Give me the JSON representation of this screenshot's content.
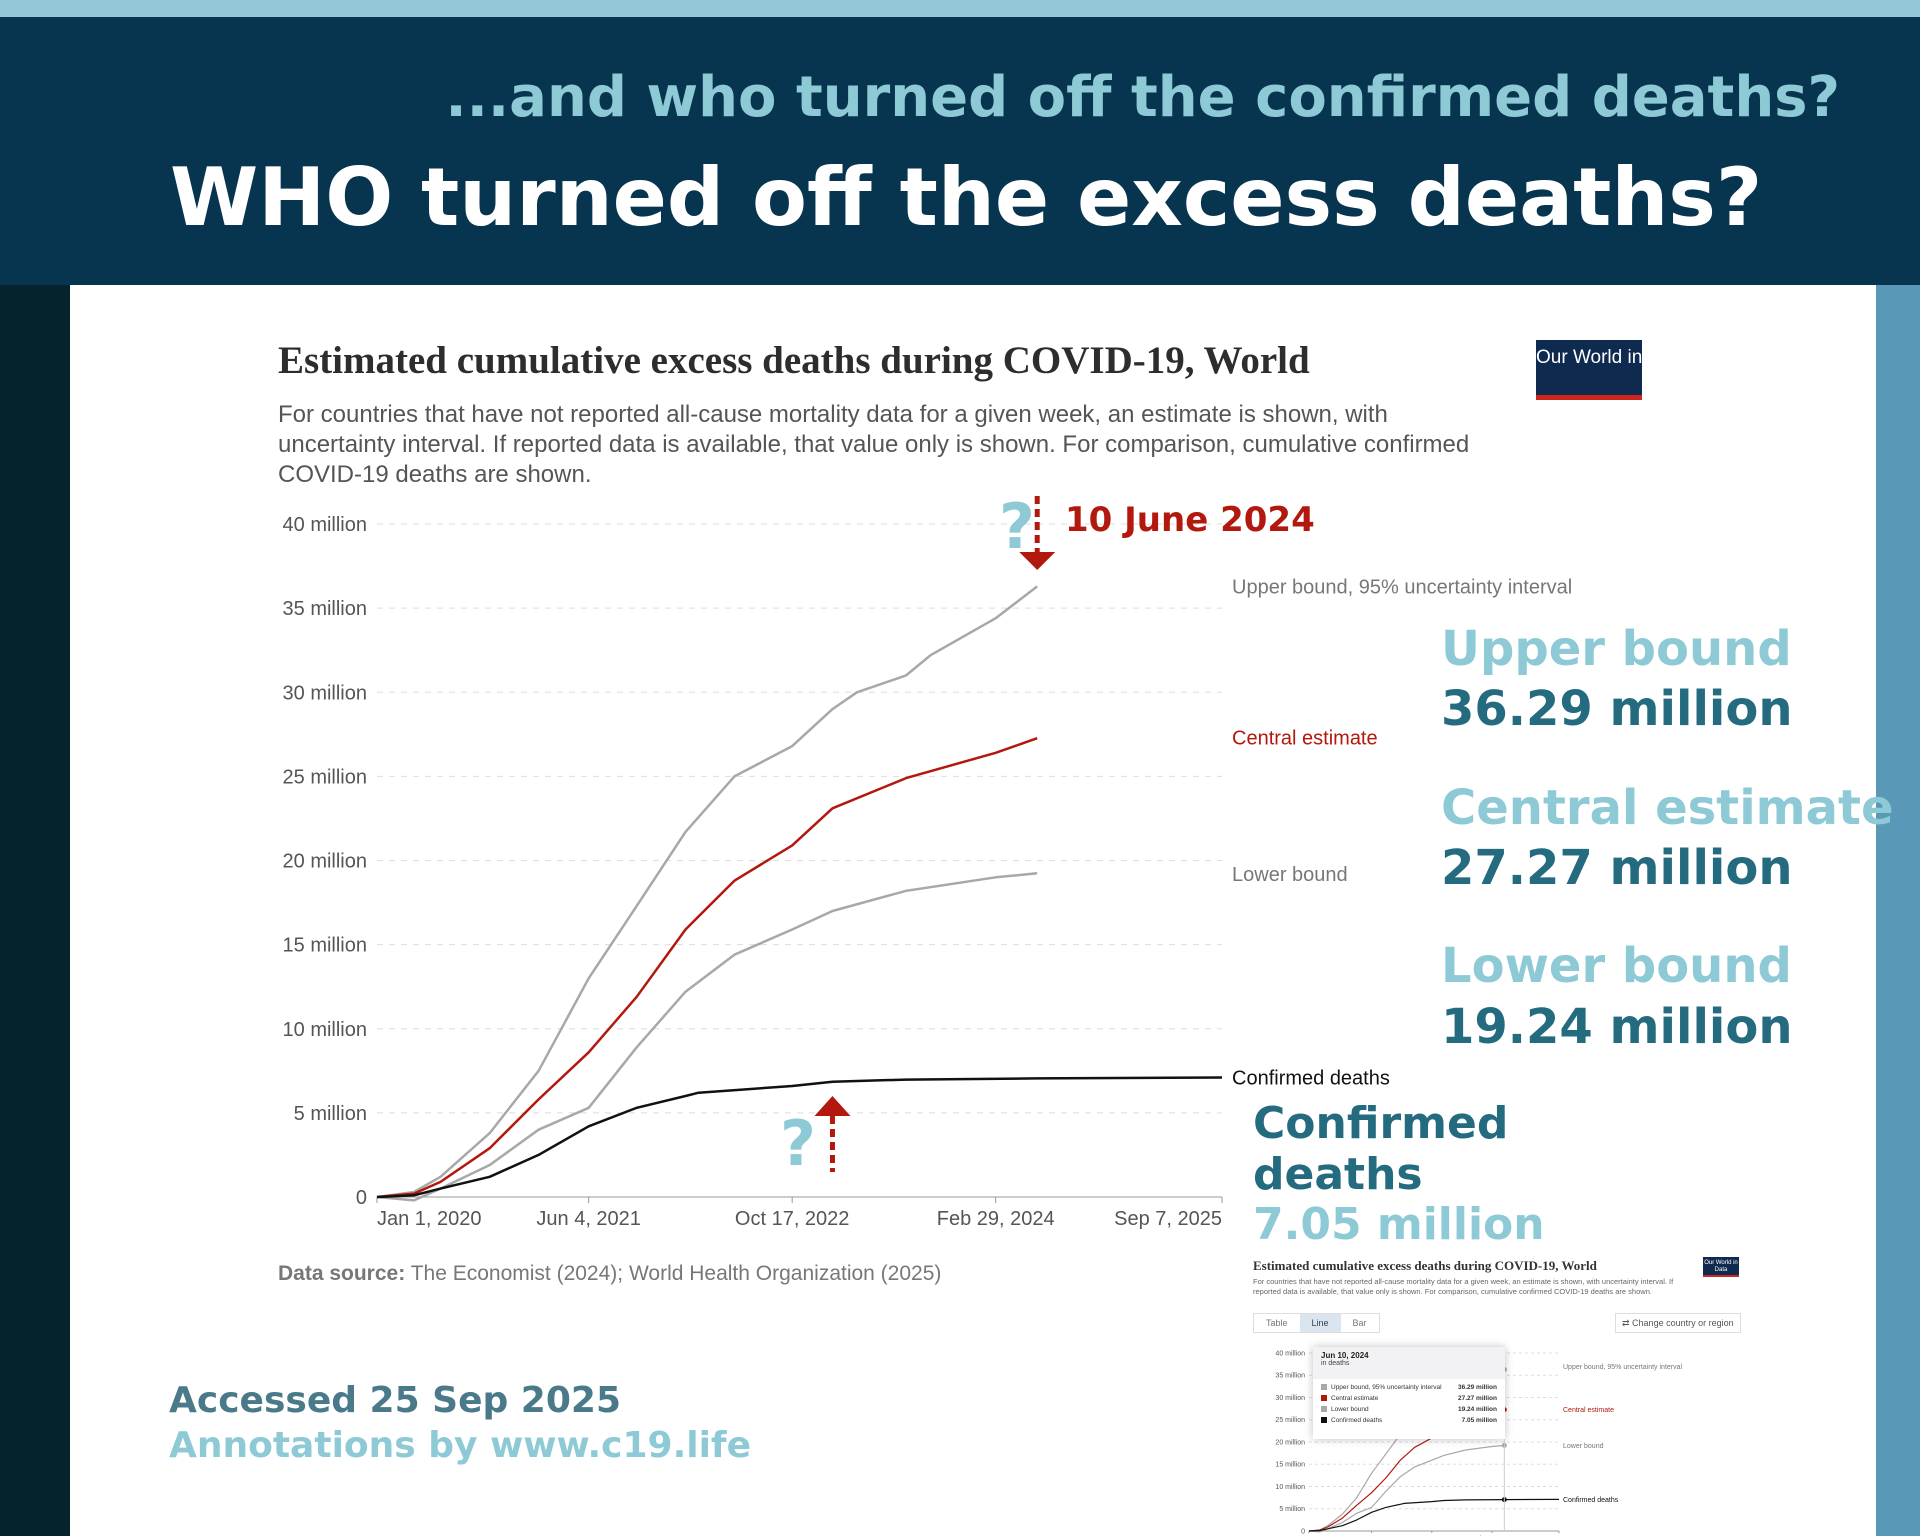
{
  "header": {
    "subtitle": "...and who turned off the confirmed deaths?",
    "title": "WHO turned off the excess deaths?"
  },
  "chart_data": {
    "type": "line",
    "title": "Estimated cumulative excess deaths during COVID-19, World",
    "subtitle": "For countries that have not reported all-cause mortality data for a given week, an estimate is shown, with uncertainty interval. If reported data is available, that value only is shown. For comparison, cumulative confirmed COVID-19 deaths are shown.",
    "logo": "Our World in Data",
    "y_unit": "million",
    "ylim": [
      0,
      40
    ],
    "y_ticks": [
      {
        "v": 0,
        "label": "0"
      },
      {
        "v": 5,
        "label": "5 million"
      },
      {
        "v": 10,
        "label": "10 million"
      },
      {
        "v": 15,
        "label": "15 million"
      },
      {
        "v": 20,
        "label": "20 million"
      },
      {
        "v": 25,
        "label": "25 million"
      },
      {
        "v": 30,
        "label": "30 million"
      },
      {
        "v": 35,
        "label": "35 million"
      },
      {
        "v": 40,
        "label": "40 million"
      }
    ],
    "xlim": [
      "2020-01-01",
      "2025-09-07"
    ],
    "x_ticks": [
      {
        "d": "2020-01-01",
        "label": "Jan 1, 2020"
      },
      {
        "d": "2021-06-04",
        "label": "Jun 4, 2021"
      },
      {
        "d": "2022-10-17",
        "label": "Oct 17, 2022"
      },
      {
        "d": "2024-02-29",
        "label": "Feb 29, 2024"
      },
      {
        "d": "2025-09-07",
        "label": "Sep 7, 2025"
      }
    ],
    "grid": true,
    "series": [
      {
        "name": "Upper bound, 95% uncertainty interval",
        "color": "#a8a8a8",
        "label_color": "#777777",
        "x": [
          "2020-01-01",
          "2020-04-01",
          "2020-06-05",
          "2020-10-04",
          "2021-02-01",
          "2021-06-04",
          "2021-09-30",
          "2022-01-28",
          "2022-05-28",
          "2022-10-17",
          "2023-01-24",
          "2023-03-25",
          "2023-07-24",
          "2023-09-22",
          "2024-02-29",
          "2024-06-10"
        ],
        "y": [
          0,
          0.3,
          1.2,
          3.8,
          7.5,
          13,
          17.3,
          21.7,
          25,
          26.8,
          29,
          30,
          31,
          32.2,
          34.4,
          36.29
        ]
      },
      {
        "name": "Central estimate",
        "color": "#b2180e",
        "label_color": "#b2180e",
        "x": [
          "2020-01-01",
          "2020-04-01",
          "2020-06-05",
          "2020-10-04",
          "2021-02-01",
          "2021-06-04",
          "2021-09-30",
          "2022-01-28",
          "2022-05-28",
          "2022-10-17",
          "2023-01-24",
          "2023-07-24",
          "2024-02-29",
          "2024-06-10"
        ],
        "y": [
          0,
          0.2,
          0.9,
          2.9,
          5.8,
          8.6,
          11.9,
          15.9,
          18.8,
          20.9,
          23.1,
          24.9,
          26.4,
          27.27
        ]
      },
      {
        "name": "Lower bound",
        "color": "#a8a8a8",
        "label_color": "#777777",
        "x": [
          "2020-01-01",
          "2020-04-01",
          "2020-06-05",
          "2020-10-04",
          "2021-02-01",
          "2021-06-04",
          "2021-09-30",
          "2022-01-28",
          "2022-05-28",
          "2022-10-17",
          "2023-01-24",
          "2023-07-24",
          "2024-02-29",
          "2024-06-10"
        ],
        "y": [
          0,
          -0.2,
          0.5,
          1.9,
          4,
          5.3,
          8.9,
          12.2,
          14.4,
          15.9,
          17,
          18.2,
          19,
          19.24
        ]
      },
      {
        "name": "Confirmed deaths",
        "color": "#111111",
        "label_color": "#111111",
        "x": [
          "2020-01-01",
          "2020-04-01",
          "2020-06-05",
          "2020-10-04",
          "2021-02-01",
          "2021-06-04",
          "2021-09-30",
          "2022-01-28",
          "2022-03-01",
          "2022-10-17",
          "2023-01-24",
          "2023-07-24",
          "2024-06-10",
          "2025-09-07"
        ],
        "y": [
          0,
          0.1,
          0.5,
          1.2,
          2.5,
          4.2,
          5.3,
          6,
          6.2,
          6.6,
          6.85,
          6.98,
          7.05,
          7.1
        ]
      }
    ],
    "source_label": "Data source:",
    "source": "The Economist (2024); World Health Organization (2025)"
  },
  "annotations": {
    "date_label": "10 June 2024",
    "question": "?",
    "upper_title": "Upper bound",
    "upper_value": "36.29 million",
    "central_title": "Central estimate",
    "central_value": "27.27 million",
    "lower_title": "Lower bound",
    "lower_value": "19.24 million",
    "confirmed_title_1": "Confirmed",
    "confirmed_title_2": "deaths",
    "confirmed_value": "7.05 million",
    "accessed": "Accessed 25 Sep 2025",
    "credit": "Annotations by www.c19.life",
    "arrow_color": "#b2180e",
    "question_color": "#8ec9d6"
  },
  "inset": {
    "tabs": [
      "Table",
      "Line",
      "Bar"
    ],
    "active_tab": "Line",
    "change_region": "Change country or region",
    "tooltip_date": "Jun 10, 2024",
    "tooltip_unit": "in deaths",
    "tooltip_rows": [
      {
        "label": "Upper bound, 95% uncertainty interval",
        "value": "36.29 million",
        "color": "#a8a8a8"
      },
      {
        "label": "Central estimate",
        "value": "27.27 million",
        "color": "#b2180e"
      },
      {
        "label": "Lower bound",
        "value": "19.24 million",
        "color": "#a8a8a8"
      },
      {
        "label": "Confirmed deaths",
        "value": "7.05 million",
        "color": "#111111"
      }
    ],
    "right_labels": [
      "Upper bound, 95% uncertainty interval",
      "Central estimate",
      "Lower bound",
      "Confirmed deaths"
    ]
  }
}
